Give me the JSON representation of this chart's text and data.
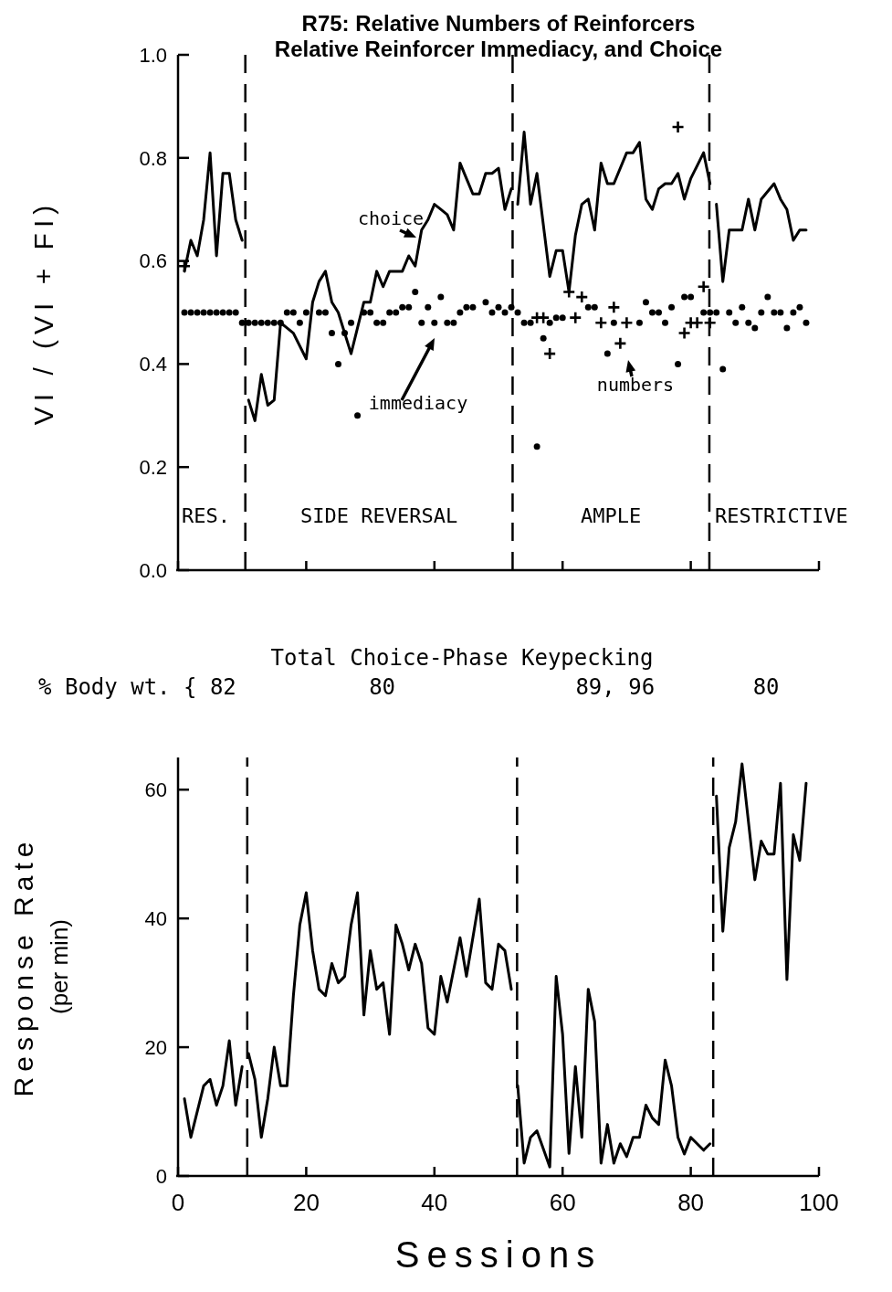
{
  "chart_data": [
    {
      "type": "line",
      "title": "R75: Relative Numbers of Reinforcers\nRelative Reinforcer Immediacy, and Choice",
      "ylabel": "VI / (VI + FI)",
      "xlim": [
        0,
        100
      ],
      "xticks": [
        0,
        20,
        40,
        60,
        80,
        100
      ],
      "ylim": [
        0,
        1.0
      ],
      "yticks": [
        {
          "value": 0,
          "label": "0.0"
        },
        {
          "value": 0.2,
          "label": "0.2"
        },
        {
          "value": 0.4,
          "label": "0.4"
        },
        {
          "value": 0.6,
          "label": "0.6"
        },
        {
          "value": 0.8,
          "label": "0.8"
        },
        {
          "value": 1.0,
          "label": "1.0"
        }
      ],
      "tick_labels": "y",
      "ref_lines": [
        {
          "axis": "x",
          "value": 10.5,
          "line_style": "dashed"
        },
        {
          "axis": "x",
          "value": 52.2,
          "line_style": "dashed"
        },
        {
          "axis": "x",
          "value": 82.9,
          "line_style": "dashed"
        }
      ],
      "annotations": [
        "RES.",
        "SIDE REVERSAL",
        "AMPLE",
        "RESTRICTIVE"
      ],
      "series": [
        {
          "name": "choice",
          "type": "line",
          "color": "#000000",
          "marker": "none",
          "x": [
            1,
            2,
            3,
            4,
            5,
            6,
            7,
            8,
            9,
            10,
            10.5,
            11,
            12,
            13,
            14,
            15,
            16,
            17,
            18,
            20,
            21,
            22,
            23,
            24,
            25,
            27,
            28,
            29,
            30,
            31,
            32,
            33,
            34,
            35,
            36,
            37,
            38,
            39,
            40,
            41,
            42,
            43,
            44,
            45,
            46,
            47,
            48,
            49,
            50,
            51,
            52,
            52.5,
            53,
            54,
            55,
            56,
            58,
            59,
            60,
            61,
            62,
            63,
            64,
            65,
            66,
            67,
            68,
            70,
            71,
            72,
            73,
            74,
            75,
            76,
            77,
            78,
            79,
            80,
            82,
            83,
            83.5,
            84,
            85,
            86,
            88,
            89,
            90,
            91,
            93,
            94,
            95,
            96,
            97,
            98
          ],
          "values": [
            0.58,
            0.64,
            0.61,
            0.68,
            0.81,
            0.61,
            0.77,
            0.77,
            0.68,
            0.64,
            null,
            0.33,
            0.29,
            0.38,
            0.32,
            0.33,
            0.48,
            0.47,
            0.46,
            0.41,
            0.52,
            0.56,
            0.58,
            0.52,
            0.5,
            0.42,
            0.47,
            0.52,
            0.52,
            0.58,
            0.55,
            0.58,
            0.58,
            0.58,
            0.61,
            0.59,
            0.66,
            0.68,
            0.71,
            0.7,
            0.69,
            0.66,
            0.79,
            0.76,
            0.73,
            0.73,
            0.77,
            0.77,
            0.78,
            0.7,
            0.74,
            null,
            0.71,
            0.85,
            0.71,
            0.77,
            0.57,
            0.62,
            0.62,
            0.54,
            0.65,
            0.71,
            0.72,
            0.66,
            0.79,
            0.75,
            0.75,
            0.81,
            0.81,
            0.83,
            0.72,
            0.7,
            0.74,
            0.75,
            0.75,
            0.77,
            0.72,
            0.76,
            0.81,
            0.75,
            null,
            0.71,
            0.56,
            0.66,
            0.66,
            0.72,
            0.66,
            0.72,
            0.75,
            0.72,
            0.7,
            0.64,
            0.66,
            0.66
          ]
        },
        {
          "name": "immediacy",
          "type": "scatter",
          "color": "#000000",
          "marker": "circle",
          "x": [
            1,
            2,
            3,
            4,
            5,
            6,
            7,
            8,
            9,
            10,
            11,
            12,
            13,
            14,
            15,
            16,
            17,
            18,
            19,
            20,
            22,
            23,
            24,
            25,
            26,
            27,
            28,
            29,
            30,
            31,
            32,
            33,
            34,
            35,
            36,
            37,
            38,
            39,
            40,
            41,
            42,
            43,
            44,
            45,
            46,
            48,
            49,
            50,
            51,
            52,
            53,
            54,
            55,
            56,
            57,
            58,
            59,
            60,
            64,
            65,
            67,
            68,
            72,
            73,
            74,
            75,
            76,
            77,
            78,
            79,
            80,
            82,
            83,
            84,
            85,
            86,
            87,
            88,
            89,
            90,
            91,
            92,
            93,
            94,
            95,
            96,
            97,
            98
          ],
          "values": [
            0.5,
            0.5,
            0.5,
            0.5,
            0.5,
            0.5,
            0.5,
            0.5,
            0.5,
            0.48,
            0.48,
            0.48,
            0.48,
            0.48,
            0.48,
            0.48,
            0.5,
            0.5,
            0.48,
            0.5,
            0.5,
            0.5,
            0.46,
            0.4,
            0.46,
            0.48,
            0.3,
            0.5,
            0.5,
            0.48,
            0.48,
            0.5,
            0.5,
            0.51,
            0.51,
            0.54,
            0.48,
            0.51,
            0.48,
            0.53,
            0.48,
            0.48,
            0.5,
            0.51,
            0.51,
            0.52,
            0.5,
            0.51,
            0.5,
            0.51,
            0.5,
            0.48,
            0.48,
            0.24,
            0.45,
            0.48,
            0.49,
            0.49,
            0.51,
            0.51,
            0.42,
            0.48,
            0.48,
            0.52,
            0.5,
            0.5,
            0.48,
            0.51,
            0.4,
            0.53,
            0.53,
            0.5,
            0.5,
            0.5,
            0.39,
            0.5,
            0.48,
            0.51,
            0.48,
            0.47,
            0.5,
            0.53,
            0.5,
            0.5,
            0.47,
            0.5,
            0.51,
            0.48
          ]
        },
        {
          "name": "numbers",
          "type": "scatter",
          "color": "#000000",
          "marker": "cross",
          "x": [
            1,
            56,
            57,
            58,
            61,
            62,
            63,
            66,
            68,
            69,
            70,
            78,
            79,
            80,
            81,
            82,
            83
          ],
          "values": [
            0.59,
            0.49,
            0.49,
            0.42,
            0.54,
            0.49,
            0.53,
            0.48,
            0.51,
            0.44,
            0.48,
            0.86,
            0.46,
            0.48,
            0.48,
            0.55,
            0.48
          ]
        }
      ]
    },
    {
      "type": "line",
      "title": "Total Choice-Phase Keypecking",
      "xlabel": "Sessions",
      "ylabel": "Response Rate\n(per min)",
      "xlim": [
        0,
        100
      ],
      "xticks": [
        0,
        20,
        40,
        60,
        80,
        100
      ],
      "ylim": [
        0,
        65
      ],
      "yticks": [
        0,
        20,
        40,
        60
      ],
      "ref_lines": [
        {
          "axis": "x",
          "value": 10.8,
          "line_style": "dashed"
        },
        {
          "axis": "x",
          "value": 52.9,
          "line_style": "dashed"
        },
        {
          "axis": "x",
          "value": 83.5,
          "line_style": "dashed"
        }
      ],
      "annotations": [
        "% Body wt. { 82",
        "80",
        "89, 96",
        "80"
      ],
      "series": [
        {
          "type": "line",
          "color": "#000000",
          "marker": "none",
          "x": [
            1,
            2,
            4,
            5,
            6,
            7,
            8,
            9,
            10,
            10.8,
            11,
            12,
            13,
            14,
            15,
            16,
            17,
            18,
            19,
            20,
            21,
            22,
            23,
            24,
            25,
            26,
            27,
            28,
            29,
            30,
            31,
            32,
            33,
            34,
            35,
            36,
            37,
            38,
            39,
            40,
            41,
            42,
            44,
            45,
            47,
            48,
            49,
            50,
            51,
            52,
            52.9,
            53,
            54,
            55,
            56,
            58,
            59,
            60,
            61,
            62,
            63,
            64,
            65,
            66,
            67,
            68,
            69,
            70,
            71,
            72,
            73,
            74,
            75,
            76,
            77,
            78,
            79,
            80,
            81,
            82,
            83,
            83.5,
            84,
            85,
            86,
            87,
            88,
            90,
            91,
            92,
            93,
            94,
            95,
            96,
            97,
            98
          ],
          "values": [
            12,
            6,
            14,
            15,
            11,
            14,
            21,
            11,
            17,
            null,
            19,
            15,
            6,
            12,
            20,
            14,
            14,
            28,
            39,
            44,
            35,
            29,
            28,
            33,
            30,
            31,
            39,
            44,
            25,
            35,
            29,
            30,
            22,
            39,
            36,
            32,
            36,
            33,
            23,
            22,
            31,
            27,
            37,
            31,
            43,
            30,
            29,
            36,
            35,
            29,
            null,
            14,
            2,
            6,
            7,
            1.4,
            31,
            22,
            3.5,
            17,
            6,
            29,
            24,
            2,
            8,
            2,
            5,
            3,
            6,
            6,
            11,
            9,
            8,
            18,
            14,
            6,
            3.4,
            6,
            5,
            4,
            5,
            null,
            59,
            38,
            51,
            55,
            64,
            46,
            52,
            50,
            50,
            61,
            30.5,
            53,
            49,
            61
          ]
        }
      ]
    }
  ]
}
